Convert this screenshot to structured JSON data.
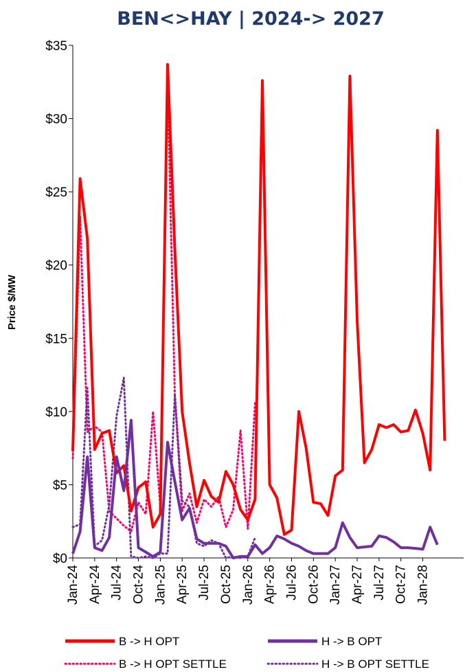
{
  "chart_data": {
    "type": "line",
    "title": "BEN<>HAY | 2024-> 2027",
    "xlabel": "",
    "ylabel": "Price $/MW",
    "ylim": [
      0,
      35
    ],
    "yticks": [
      "$0",
      "$5",
      "$10",
      "$15",
      "$20",
      "$25",
      "$30",
      "$35"
    ],
    "x_tick_labels": [
      "Jan-24",
      "Apr-24",
      "Jul-24",
      "Oct-24",
      "Jan-25",
      "Apr-25",
      "Jul-25",
      "Oct-25",
      "Jan-26",
      "Apr-26",
      "Jul-26",
      "Oct-26",
      "Jan-27",
      "Apr-27",
      "Jul-27",
      "Oct-27",
      "Jan-28"
    ],
    "x_months_count": 54,
    "legend_position": "bottom",
    "grid": false,
    "series": [
      {
        "name": "B -> H  OPT",
        "color": "#ff0000",
        "style": "solid",
        "start_month": 0,
        "values": [
          7.3,
          25.9,
          21.8,
          7.4,
          8.5,
          8.7,
          5.8,
          6.3,
          3.2,
          4.8,
          5.2,
          2.1,
          3.0,
          33.7,
          21.0,
          10.0,
          6.5,
          3.5,
          5.3,
          4.2,
          3.8,
          5.9,
          5.0,
          3.3,
          2.6,
          4.0,
          32.6,
          5.0,
          4.1,
          1.6,
          1.9,
          10.0,
          7.5,
          3.8,
          3.7,
          2.9,
          5.6,
          6.0,
          32.9,
          16.2,
          6.5,
          7.4,
          9.1,
          8.9,
          9.1,
          8.6,
          8.7,
          10.1,
          8.5,
          6.0,
          29.2,
          8.0
        ]
      },
      {
        "name": "H -> B  OPT",
        "color": "#7030a0",
        "style": "solid",
        "start_month": 0,
        "values": [
          0.3,
          1.8,
          6.9,
          0.7,
          0.5,
          1.4,
          6.9,
          4.6,
          9.4,
          0.7,
          0.4,
          0.1,
          0.4,
          7.9,
          5.2,
          2.6,
          3.4,
          1.3,
          1.0,
          1.0,
          1.0,
          0.8,
          0.0,
          0.1,
          0.1,
          0.9,
          0.3,
          0.7,
          1.5,
          1.3,
          1.0,
          0.8,
          0.5,
          0.3,
          0.3,
          0.3,
          0.7,
          2.4,
          1.4,
          0.7,
          0.75,
          0.8,
          1.5,
          1.4,
          1.1,
          0.7,
          0.7,
          0.65,
          0.6,
          2.1,
          0.9
        ]
      },
      {
        "name": "B -> H  OPT SETTLE",
        "color": "#ff0066",
        "style": "dotted",
        "start_month": 0,
        "values": [
          6.8,
          23.3,
          8.6,
          9.0,
          8.6,
          3.2,
          2.7,
          2.2,
          1.8,
          3.8,
          3.0,
          10.0,
          3.5,
          32.5,
          11.0,
          3.2,
          4.4,
          2.4,
          4.0,
          3.5,
          4.2,
          2.1,
          3.3,
          8.7,
          2.0,
          10.6
        ]
      },
      {
        "name": "H -> B  OPT SETTLE",
        "color": "#7030a0",
        "style": "dotted",
        "start_month": 0,
        "values": [
          2.1,
          2.3,
          11.6,
          0.8,
          1.2,
          3.6,
          9.7,
          12.3,
          0.1,
          0.0,
          0.1,
          0.0,
          0.3,
          0.3,
          11.2,
          3.9,
          3.5,
          1.0,
          0.8,
          1.2,
          1.0,
          0.0,
          0.1,
          0.0,
          0.1,
          1.4
        ]
      }
    ]
  }
}
